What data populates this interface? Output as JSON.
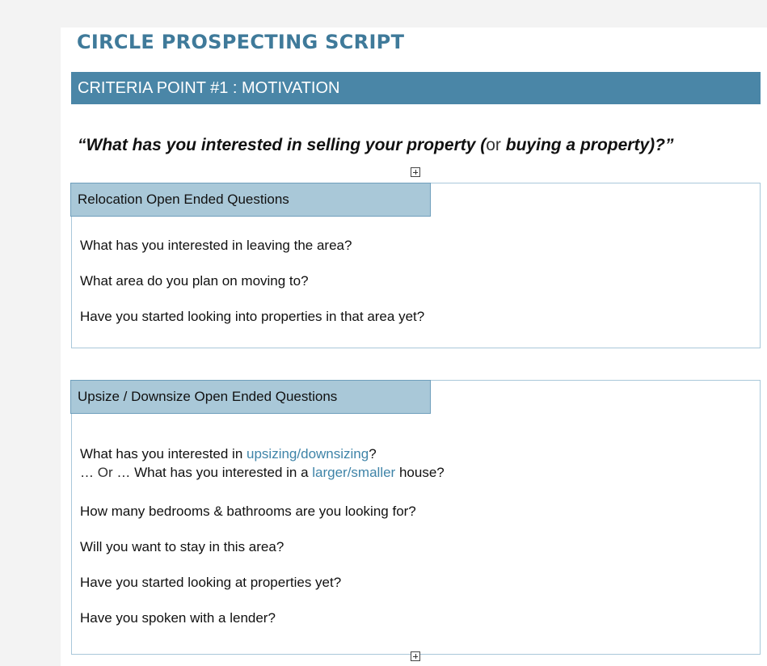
{
  "document": {
    "title": "CIRCLE PROSPECTING SCRIPT",
    "section": "CRITERIA POINT #1 : MOTIVATION",
    "quote": {
      "part1": "“What has you interested in selling your property (",
      "or": "or",
      "part2": " buying a property)?”"
    },
    "relocation": {
      "header": "Relocation Open Ended Questions",
      "questions": [
        "What has you interested in leaving the area?",
        "What area do you plan on moving to?",
        "Have you started looking into properties in that area yet?"
      ]
    },
    "upsize": {
      "header": "Upsize / Downsize Open Ended Questions",
      "q1_pre": "What has you interested in ",
      "q1_highlight": "upsizing/downsizing",
      "q1_post": "?",
      "q2_lead": "… ",
      "q2_or": "Or",
      "q2_mid": " … What has you interested in a ",
      "q2_highlight": "larger/smaller",
      "q2_post": " house?",
      "questions": [
        "How many bedrooms & bathrooms are you looking for?",
        "Will you want to stay in this area?",
        "Have you started looking at properties yet?",
        "Have you spoken with a lender?"
      ]
    },
    "icons": [
      "expand-icon",
      "expand-icon"
    ]
  }
}
